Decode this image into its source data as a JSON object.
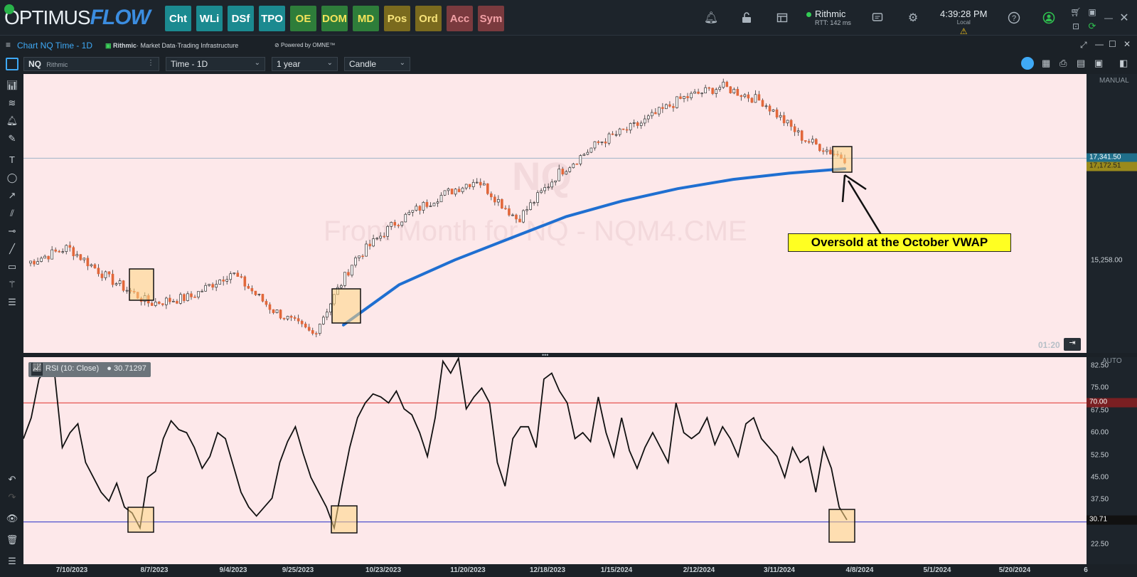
{
  "app": {
    "logo_main": "OPTIMUS",
    "logo_flow": "FLOW",
    "nav_buttons": [
      {
        "label": "Cht",
        "bg": "#1b8a90",
        "fg": "#ffffff"
      },
      {
        "label": "WLi",
        "bg": "#1b8a90",
        "fg": "#ffffff"
      },
      {
        "label": "DSf",
        "bg": "#1b8a90",
        "fg": "#ffffff"
      },
      {
        "label": "TPO",
        "bg": "#1b8a90",
        "fg": "#ffffff"
      },
      {
        "label": "OE",
        "bg": "#2e7d3a",
        "fg": "#f4e35a"
      },
      {
        "label": "DOM",
        "bg": "#2e7d3a",
        "fg": "#f4e35a"
      },
      {
        "label": "MD",
        "bg": "#2e7d3a",
        "fg": "#f4e35a"
      },
      {
        "label": "Pos",
        "bg": "#7a6a1e",
        "fg": "#f7e37a"
      },
      {
        "label": "Ord",
        "bg": "#7a6a1e",
        "fg": "#f7e37a"
      },
      {
        "label": "Acc",
        "bg": "#7a3a3e",
        "fg": "#f2a1a6"
      },
      {
        "label": "Sym",
        "bg": "#7a3a3e",
        "fg": "#f2a1a6"
      }
    ],
    "connection": {
      "name": "Rithmic",
      "rtt": "RTT: 142 ms"
    },
    "clock": {
      "time": "4:39:28 PM",
      "zone": "Local"
    }
  },
  "window": {
    "title": "Chart NQ Time - 1D",
    "rithmic_brand": "Rithmic",
    "rithmic_tag": "· Market Data·Trading Infrastructure",
    "omne": "Powered by OMNE™"
  },
  "toolbar": {
    "symbol": "NQ",
    "symbol_source": "Rithmic",
    "interval": "Time - 1D",
    "range": "1 year",
    "chart_type": "Candle"
  },
  "main_chart": {
    "watermark_symbol": "NQ",
    "watermark_desc": "Front Month for NQ - NQM4.CME",
    "scale_mode": "MANUAL",
    "price_labels": [
      {
        "value": "17,341.50",
        "kind": "last",
        "bg": "#1f6f8b"
      },
      {
        "value": "17,172.51",
        "kind": "vwap",
        "bg": "#9a8a1c"
      },
      {
        "value": "15,258.00",
        "kind": "tick",
        "bg": ""
      }
    ],
    "timer": "01:20",
    "annotation": "Oversold at the October VWAP"
  },
  "rsi_panel": {
    "legend": "RSI (10: Close)",
    "legend_value": "30.71297",
    "scale_mode": "AUTO",
    "ticks": [
      "82.50",
      "75.00",
      "67.50",
      "60.00",
      "52.50",
      "45.00",
      "37.50",
      "30.00",
      "22.50"
    ],
    "upper_level": "70.00",
    "current": "30.71"
  },
  "x_axis": {
    "labels": [
      "7/10/2023",
      "8/7/2023",
      "9/4/2023",
      "9/25/2023",
      "10/23/2023",
      "11/20/2023",
      "12/18/2023",
      "1/15/2024",
      "2/12/2024",
      "3/11/2024",
      "4/8/2024",
      "5/1/2024",
      "5/20/2024",
      "6"
    ]
  },
  "chart_data": [
    {
      "type": "candlestick",
      "title": "",
      "series": [
        {
          "name": "NQ",
          "approx_close_path": [
            15650,
            15900,
            15400,
            15000,
            15100,
            15500,
            14900,
            14500,
            15700,
            16300,
            16700,
            17000,
            16350,
            17100,
            17600,
            17900,
            18300,
            18500,
            18250,
            17650,
            17340
          ]
        },
        {
          "name": "Anchored VWAP (October)",
          "approx_values": [
            14650,
            15300,
            15700,
            16050,
            16400,
            16650,
            16850,
            17000,
            17100,
            17172.51
          ]
        }
      ],
      "xlabel": "",
      "ylabel": "",
      "highlight_boxes": [
        "8/7/2023",
        "10/23/2023",
        "4/8/2024"
      ]
    },
    {
      "type": "line",
      "series": [
        {
          "name": "RSI",
          "values": [
            58,
            65,
            78,
            82,
            80,
            55,
            60,
            63,
            50,
            45,
            40,
            37,
            43,
            35,
            33,
            28,
            45,
            47,
            58,
            64,
            61,
            60,
            55,
            48,
            52,
            60,
            58,
            49,
            40,
            35,
            32,
            35,
            38,
            50,
            57,
            62,
            53,
            45,
            40,
            35,
            28,
            42,
            55,
            65,
            70,
            73,
            72,
            70,
            74,
            68,
            66,
            60,
            52,
            65,
            84,
            80,
            85,
            68,
            72,
            75,
            70,
            50,
            42,
            58,
            62,
            62,
            55,
            78,
            80,
            74,
            70,
            58,
            60,
            57,
            72,
            60,
            52,
            65,
            54,
            48,
            55,
            60,
            55,
            50,
            70,
            60,
            58,
            60,
            65,
            56,
            62,
            58,
            52,
            63,
            65,
            58,
            55,
            52,
            45,
            55,
            50,
            52,
            40,
            55,
            48,
            35,
            30.71
          ]
        }
      ],
      "ylim": [
        22.5,
        82.5
      ],
      "levels": [
        70,
        30
      ]
    }
  ]
}
